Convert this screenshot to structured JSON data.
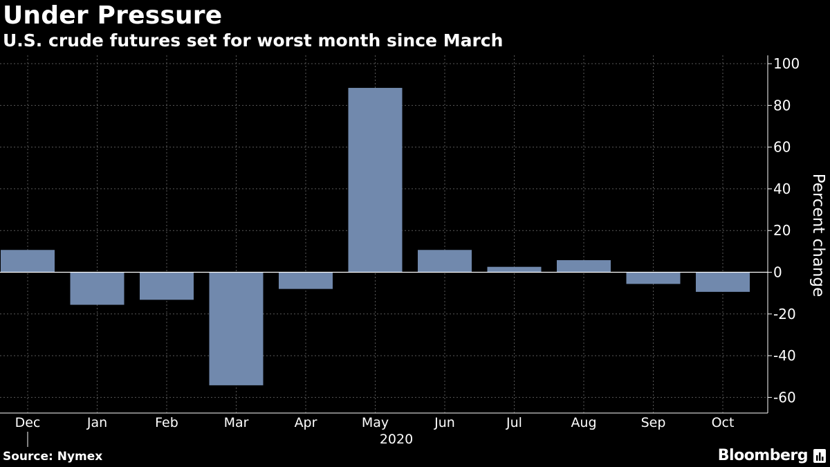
{
  "header": {
    "title": "Under Pressure",
    "subtitle": "U.S. crude futures set for worst month since March"
  },
  "footer": {
    "source": "Source: Nymex",
    "brand": "Bloomberg"
  },
  "colors": {
    "background": "#000000",
    "bar": "#7189ad",
    "grid": "#5a5a5a",
    "axis": "#ffffff",
    "text": "#ffffff"
  },
  "chart_data": {
    "type": "bar",
    "title": "Under Pressure",
    "subtitle": "U.S. crude futures set for worst month since March",
    "categories": [
      "Dec",
      "Jan",
      "Feb",
      "Mar",
      "Apr",
      "May",
      "Jun",
      "Jul",
      "Aug",
      "Sep",
      "Oct"
    ],
    "values": [
      10.7,
      -15.6,
      -13.2,
      -54.2,
      -8.0,
      88.4,
      10.7,
      2.6,
      5.8,
      -5.6,
      -9.4
    ],
    "xlabel": "2020",
    "ylabel": "Percent change",
    "ylim": [
      -67.5,
      104
    ],
    "yticks": [
      100,
      80,
      60,
      40,
      20,
      0,
      -20,
      -40,
      -60
    ],
    "ytick_labels": [
      "100",
      "80",
      "60",
      "40",
      "20",
      "0",
      "-20",
      "-40",
      "-60"
    ],
    "grid": true,
    "axis_side": "right",
    "legend": "none"
  }
}
